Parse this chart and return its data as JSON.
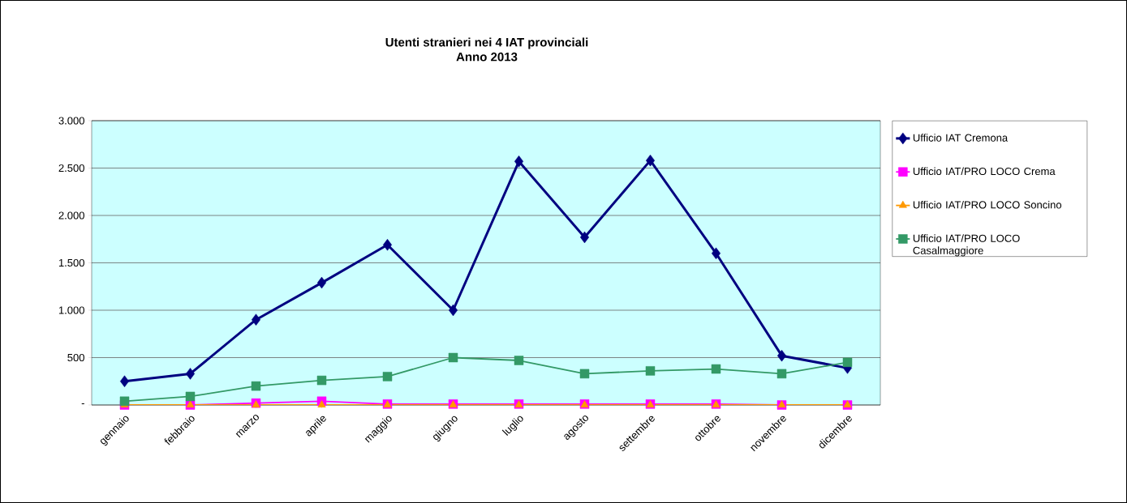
{
  "chart_data": {
    "type": "line",
    "title": "Utenti stranieri nei 4 IAT provinciali",
    "subtitle": "Anno 2013",
    "categories": [
      "gennaio",
      "febbraio",
      "marzo",
      "aprile",
      "maggio",
      "giugno",
      "luglio",
      "agosto",
      "settembre",
      "ottobre",
      "novembre",
      "dicembre"
    ],
    "series": [
      {
        "name": "Ufficio IAT Cremona",
        "color": "#000080",
        "marker": "diamond",
        "values": [
          250,
          330,
          900,
          1290,
          1690,
          1000,
          2570,
          1770,
          2580,
          1600,
          520,
          390
        ]
      },
      {
        "name": "Ufficio IAT/PRO LOCO Crema",
        "color": "#ff00ff",
        "marker": "square",
        "values": [
          0,
          0,
          20,
          40,
          10,
          10,
          10,
          10,
          10,
          10,
          0,
          0
        ]
      },
      {
        "name": "Ufficio IAT/PRO LOCO Soncino",
        "color": "#ff9900",
        "marker": "triangle",
        "values": [
          0,
          0,
          0,
          0,
          0,
          0,
          0,
          0,
          0,
          0,
          0,
          0
        ]
      },
      {
        "name": "Ufficio IAT/PRO LOCO Casalmaggiore",
        "color": "#339966",
        "marker": "square",
        "values": [
          40,
          90,
          200,
          260,
          300,
          500,
          470,
          330,
          360,
          380,
          330,
          450
        ]
      }
    ],
    "ylim": [
      0,
      3000
    ],
    "yticks": [
      {
        "value": 0,
        "label": "-"
      },
      500,
      {
        "value": 1000,
        "label": "1.000"
      },
      {
        "value": 1500,
        "label": "1.500"
      },
      {
        "value": 2000,
        "label": "2.000"
      },
      {
        "value": 2500,
        "label": "2.500"
      },
      {
        "value": 3000,
        "label": "3.000"
      }
    ],
    "grid": "y",
    "legend": "right"
  }
}
